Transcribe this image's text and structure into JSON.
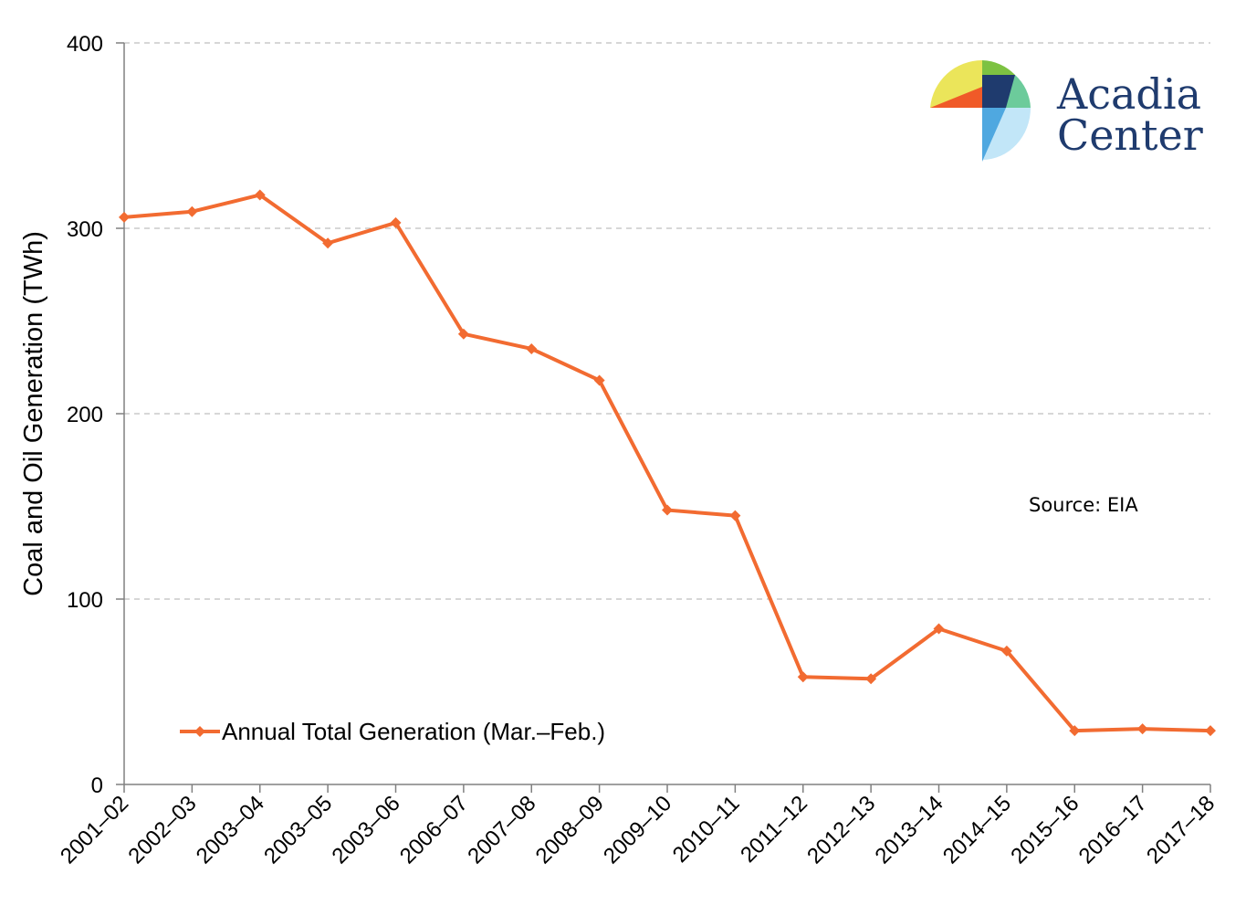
{
  "chart_data": {
    "type": "line",
    "title": "",
    "xlabel": "",
    "ylabel": "Coal and Oil Generation (TWh)",
    "ylim": [
      0,
      400
    ],
    "yticks": [
      0,
      100,
      200,
      300,
      400
    ],
    "grid": true,
    "legend_position": "bottom-left",
    "categories": [
      "2001–02",
      "2002–03",
      "2003–04",
      "2003–05",
      "2003–06",
      "2006–07",
      "2007–08",
      "2008–09",
      "2009–10",
      "2010–11",
      "2011–12",
      "2012–13",
      "2013–14",
      "2014–15",
      "2015–16",
      "2016–17",
      "2017–18"
    ],
    "series": [
      {
        "name": "Annual Total Generation (Mar.–Feb.)",
        "color": "#F26B31",
        "marker": "diamond",
        "values": [
          306,
          309,
          318,
          292,
          303,
          243,
          235,
          218,
          148,
          145,
          58,
          57,
          84,
          72,
          29,
          30,
          29
        ]
      }
    ],
    "annotation": "Source: EIA"
  },
  "logo": {
    "line1": "Acadia",
    "line2": "Center",
    "text_color": "#1F3B6E",
    "colors": {
      "yellow": "#EBE55A",
      "orange": "#F05A28",
      "green": "#7DC242",
      "navy": "#1F3B6E",
      "teal": "#6CCB9B",
      "blue": "#4FA8E0",
      "lightblue": "#C2E6F8"
    }
  }
}
